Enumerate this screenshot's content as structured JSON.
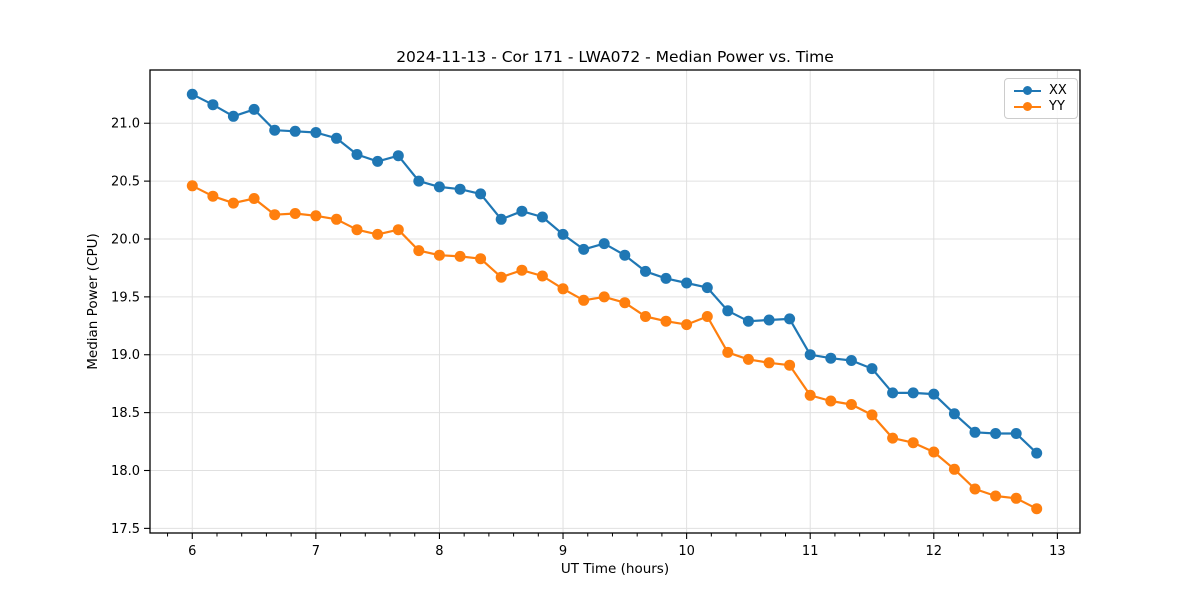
{
  "chart_data": {
    "type": "line",
    "title": "2024-11-13 - Cor 171 - LWA072 - Median Power vs. Time",
    "xlabel": "UT Time (hours)",
    "ylabel": "Median Power (CPU)",
    "xlim": [
      5.658,
      13.183
    ],
    "ylim": [
      17.46,
      21.46
    ],
    "x_major_ticks": [
      6,
      7,
      8,
      9,
      10,
      11,
      12,
      13
    ],
    "x_minor_step": 0.2,
    "y_major_ticks": [
      17.5,
      18.0,
      18.5,
      19.0,
      19.5,
      20.0,
      20.5,
      21.0
    ],
    "grid": true,
    "legend_position": "upper right",
    "marker": "circle",
    "x": [
      6.0,
      6.167,
      6.333,
      6.5,
      6.667,
      6.833,
      7.0,
      7.167,
      7.333,
      7.5,
      7.667,
      7.833,
      8.0,
      8.167,
      8.333,
      8.5,
      8.667,
      8.833,
      9.0,
      9.167,
      9.333,
      9.5,
      9.667,
      9.833,
      10.0,
      10.167,
      10.333,
      10.5,
      10.667,
      10.833,
      11.0,
      11.167,
      11.333,
      11.5,
      11.667,
      11.833,
      12.0,
      12.167,
      12.333,
      12.5,
      12.667,
      12.833
    ],
    "series": [
      {
        "name": "XX",
        "color": "#1f77b4",
        "values": [
          21.25,
          21.16,
          21.06,
          21.12,
          20.94,
          20.93,
          20.92,
          20.87,
          20.73,
          20.67,
          20.72,
          20.5,
          20.45,
          20.43,
          20.39,
          20.17,
          20.24,
          20.19,
          20.04,
          19.91,
          19.96,
          19.86,
          19.72,
          19.66,
          19.62,
          19.58,
          19.38,
          19.29,
          19.3,
          19.31,
          19.0,
          18.97,
          18.95,
          18.88,
          18.67,
          18.67,
          18.66,
          18.49,
          18.33,
          18.32,
          18.32,
          18.15
        ]
      },
      {
        "name": "YY",
        "color": "#ff7f0e",
        "values": [
          20.46,
          20.37,
          20.31,
          20.35,
          20.21,
          20.22,
          20.2,
          20.17,
          20.08,
          20.04,
          20.08,
          19.9,
          19.86,
          19.85,
          19.83,
          19.67,
          19.73,
          19.68,
          19.57,
          19.47,
          19.5,
          19.45,
          19.33,
          19.29,
          19.26,
          19.33,
          19.02,
          18.96,
          18.93,
          18.91,
          18.65,
          18.6,
          18.57,
          18.48,
          18.28,
          18.24,
          18.16,
          18.01,
          17.84,
          17.78,
          17.76,
          17.67
        ]
      }
    ],
    "styles": {
      "grid_color": "#e0e0e0",
      "spine_color": "#000000",
      "tick_label_size": 13,
      "line_width": 2.2,
      "marker_radius": 5.5
    }
  }
}
